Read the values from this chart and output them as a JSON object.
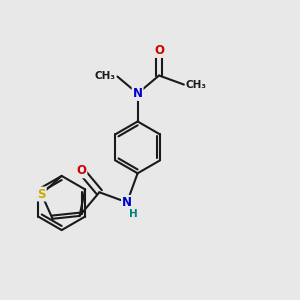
{
  "bg_color": "#e8e8e8",
  "bond_color": "#1a1a1a",
  "bond_width": 1.5,
  "atom_colors": {
    "N": "#0000cc",
    "O": "#cc0000",
    "S": "#ccaa00",
    "H": "#008080",
    "C": "#1a1a1a"
  },
  "font_size_atom": 8.5,
  "font_size_small": 7.5
}
